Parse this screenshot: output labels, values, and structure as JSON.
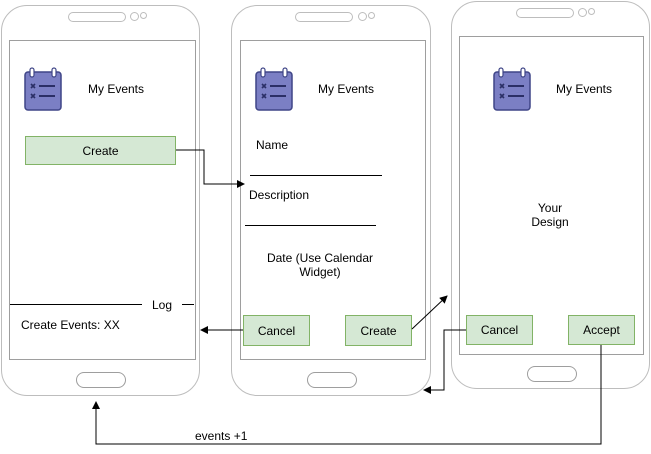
{
  "screen1": {
    "title": "My Events",
    "create_button": "Create",
    "log_label": "Log",
    "log_text": "Create Events: XX"
  },
  "screen2": {
    "title": "My Events",
    "name_label": "Name",
    "description_label": "Description",
    "date_label_line1": "Date (Use Calendar",
    "date_label_line2": "Widget)",
    "cancel_button": "Cancel",
    "create_button": "Create"
  },
  "screen3": {
    "title": "My Events",
    "design_line1": "Your",
    "design_line2": "Design",
    "cancel_button": "Cancel",
    "accept_button": "Accept"
  },
  "edge_labels": {
    "events_increment": "events +1"
  },
  "icon": "calendar-checklist-icon",
  "colors": {
    "button_fill": "#d5e8d4",
    "button_border": "#82b366",
    "icon_fill": "#7b7fc4",
    "icon_border": "#3f4587"
  }
}
